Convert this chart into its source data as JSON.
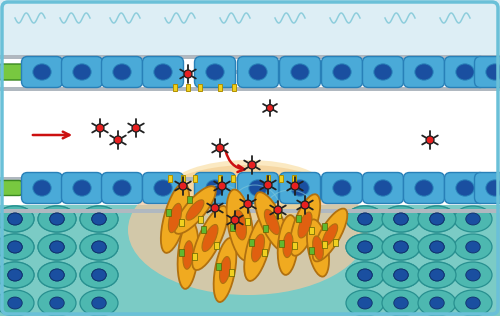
{
  "bg_top_color": "#ddeef5",
  "bg_lumen_color": "#ffffff",
  "bg_tissue_color": "#4db8b0",
  "border_color": "#6ac0d8",
  "cell_blue": "#4aaad8",
  "cell_nucleus_blue": "#1a4fa0",
  "cell_border": "#2880b8",
  "green_patch_color": "#78c840",
  "green_dark": "#3a8820",
  "yellow_receptor": "#f0d020",
  "nanoparticle_red": "#e82020",
  "nanoparticle_dark": "#202020",
  "cancer_cell_fill": "#f0aa20",
  "cancer_cell_border": "#b07010",
  "cancer_nucleus": "#e06010",
  "epr_glow": "#f8d890",
  "tissue_bg": "#f0c8a0",
  "curly_color": "#80c8d8",
  "arrow_red": "#cc1010",
  "tissue_cell_bg": "#ffffff",
  "figsize": [
    5.0,
    3.16
  ],
  "dpi": 100
}
